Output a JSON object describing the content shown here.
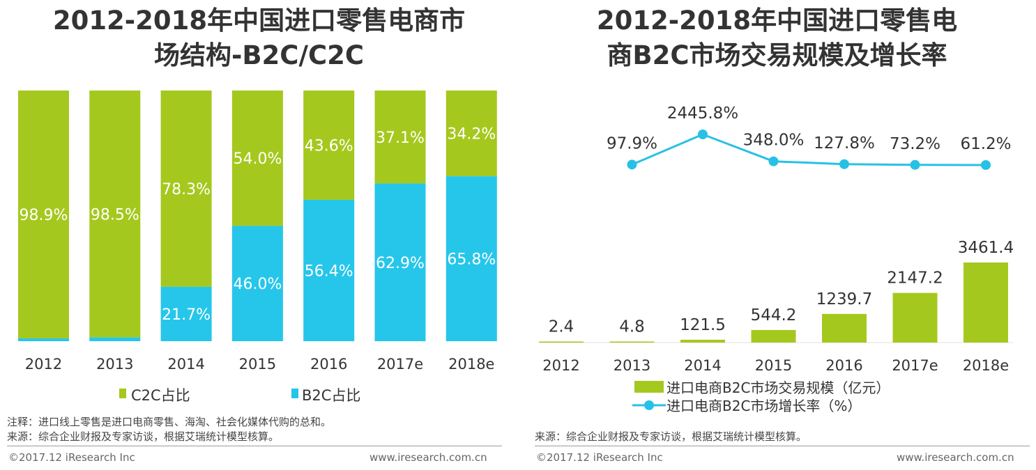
{
  "colors": {
    "c2c": "#a5c81e",
    "b2c": "#26c6ea",
    "line": "#27c1e6",
    "text": "#333333"
  },
  "left": {
    "title_line1": "2012-2018年中国进口零售电商市",
    "title_line2": "场结构-B2C/C2C",
    "note": "注释：进口线上零售是进口电商零售、海淘、社会化媒体代购的总和。",
    "source": "来源：综合企业财报及专家访谈，根据艾瑞统计模型核算。",
    "footer_left": "©2017.12 iResearch Inc",
    "footer_right": "www.iresearch.com.cn"
  },
  "right": {
    "title_line1": "2012-2018年中国进口零售电",
    "title_line2": "商B2C市场交易规模及增长率",
    "source": "来源：综合企业财报及专家访谈，根据艾瑞统计模型核算。",
    "footer_left": "©2017.12 iResearch Inc",
    "footer_right": "www.iresearch.com.cn"
  },
  "chart_data": [
    {
      "type": "bar",
      "stacked": true,
      "title": "2012-2018年中国进口零售电商市场结构-B2C/C2C",
      "categories": [
        "2012",
        "2013",
        "2014",
        "2015",
        "2016",
        "2017e",
        "2018e"
      ],
      "series": [
        {
          "name": "B2C占比",
          "values": [
            1.1,
            1.5,
            21.7,
            46.0,
            56.4,
            62.9,
            65.8
          ],
          "labels": [
            "",
            "",
            "21.7%",
            "46.0%",
            "56.4%",
            "62.9%",
            "65.8%"
          ]
        },
        {
          "name": "C2C占比",
          "values": [
            98.9,
            98.5,
            78.3,
            54.0,
            43.6,
            37.1,
            34.2
          ],
          "labels": [
            "98.9%",
            "98.5%",
            "78.3%",
            "54.0%",
            "43.6%",
            "37.1%",
            "34.2%"
          ]
        }
      ],
      "ylim": [
        0,
        100
      ],
      "legend": "bottom",
      "legend_labels": [
        "C2C占比",
        "B2C占比"
      ]
    },
    {
      "type": "bar+line",
      "title": "2012-2018年中国进口零售电商B2C市场交易规模及增长率",
      "categories": [
        "2012",
        "2013",
        "2014",
        "2015",
        "2016",
        "2017e",
        "2018e"
      ],
      "series": [
        {
          "name": "进口电商B2C市场交易规模（亿元）",
          "type": "bar",
          "values": [
            2.4,
            4.8,
            121.5,
            544.2,
            1239.7,
            2147.2,
            3461.4
          ],
          "labels": [
            "2.4",
            "4.8",
            "121.5",
            "544.2",
            "1239.7",
            "2147.2",
            "3461.4"
          ]
        },
        {
          "name": "进口电商B2C市场增长率（%）",
          "type": "line",
          "values": [
            null,
            97.9,
            2445.8,
            348.0,
            127.8,
            73.2,
            61.2
          ],
          "labels": [
            "",
            "97.9%",
            "2445.8%",
            "348.0%",
            "127.8%",
            "73.2%",
            "61.2%"
          ]
        }
      ],
      "legend": "bottom",
      "legend_labels": [
        "进口电商B2C市场交易规模（亿元）",
        "进口电商B2C市场增长率（%）"
      ]
    }
  ]
}
